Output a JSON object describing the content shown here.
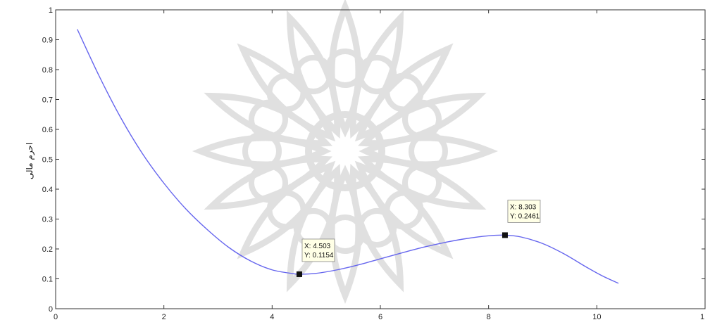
{
  "chart_data": {
    "type": "line",
    "title": "",
    "xlabel": "",
    "ylabel": "احرم مالی",
    "xlim": [
      0,
      12
    ],
    "ylim": [
      0,
      1
    ],
    "grid": false,
    "x_ticks": [
      "0",
      "2",
      "4",
      "6",
      "8",
      "10",
      "1"
    ],
    "y_ticks": [
      "0",
      "0.1",
      "0.2",
      "0.3",
      "0.4",
      "0.5",
      "0.6",
      "0.7",
      "0.8",
      "0.9",
      "1"
    ],
    "series": [
      {
        "color": "#6666ee",
        "x": [
          0.4,
          0.8,
          1.2,
          1.6,
          2.0,
          2.4,
          2.8,
          3.2,
          3.6,
          4.0,
          4.4,
          4.503,
          4.8,
          5.2,
          5.6,
          6.0,
          6.4,
          6.8,
          7.2,
          7.6,
          8.0,
          8.303,
          8.6,
          9.0,
          9.4,
          9.8,
          10.1,
          10.4
        ],
        "y": [
          0.935,
          0.78,
          0.64,
          0.52,
          0.42,
          0.335,
          0.265,
          0.205,
          0.16,
          0.13,
          0.117,
          0.1154,
          0.118,
          0.13,
          0.147,
          0.167,
          0.187,
          0.206,
          0.222,
          0.235,
          0.244,
          0.2461,
          0.24,
          0.218,
          0.183,
          0.14,
          0.11,
          0.085
        ]
      }
    ],
    "annotations": [
      {
        "x": 4.503,
        "y": 0.1154,
        "line1": "X: 4.503",
        "line2": "Y: 0.1154"
      },
      {
        "x": 8.303,
        "y": 0.2461,
        "line1": "X: 8.303",
        "line2": "Y: 0.2461"
      }
    ]
  }
}
